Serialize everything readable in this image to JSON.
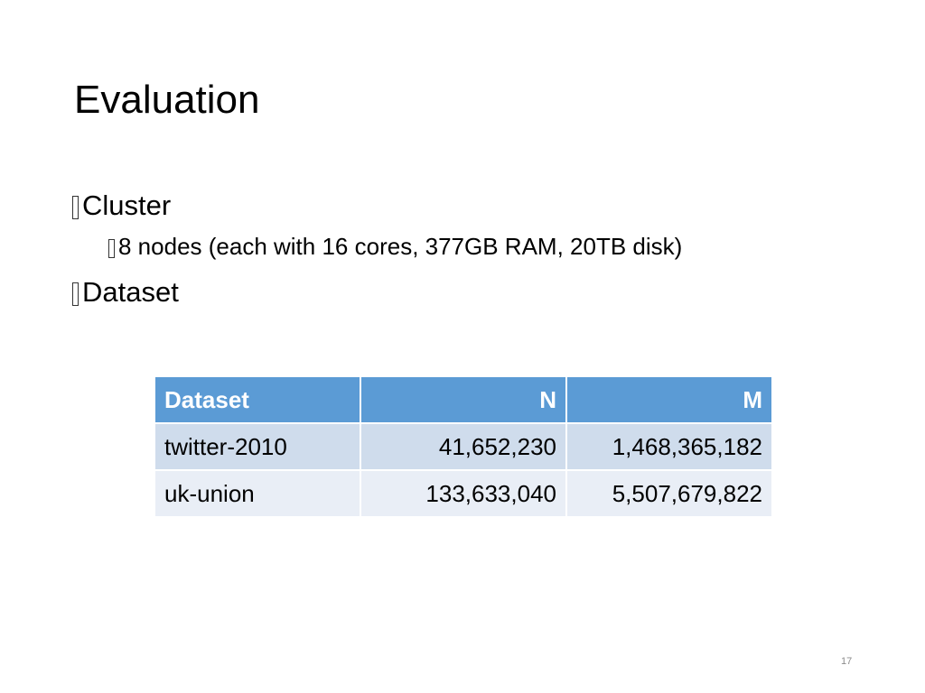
{
  "title": "Evaluation",
  "bullets": [
    {
      "text": "Cluster",
      "sub": [
        "8 nodes (each with 16 cores, 377GB RAM, 20TB disk)"
      ]
    },
    {
      "text": "Dataset"
    }
  ],
  "table": {
    "header": [
      "Dataset",
      "N",
      "M"
    ],
    "rows": [
      [
        "twitter-2010",
        "41,652,230",
        "1,468,365,182"
      ],
      [
        "uk-union",
        "133,633,040",
        "5,507,679,822"
      ]
    ]
  },
  "page_number": "17"
}
